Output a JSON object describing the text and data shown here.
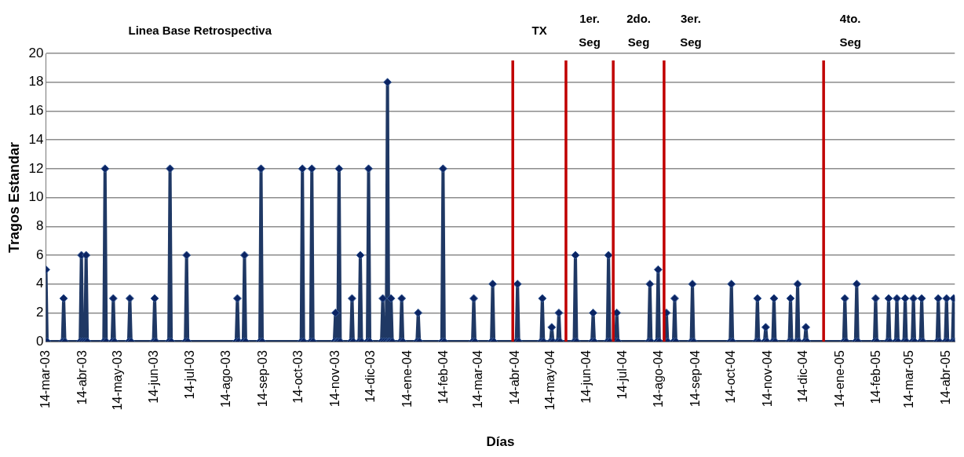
{
  "chart_data": {
    "type": "line",
    "xlabel": "Días",
    "ylabel": "Tragos Estandar",
    "color": "#1f3864",
    "marker": "diamond",
    "line_style": "solid",
    "grid": "y",
    "legend": false,
    "x": [
      "2003-03-14",
      "2003-03-15",
      "2003-03-28",
      "2003-03-29",
      "2003-03-30",
      "2003-04-12",
      "2003-04-13",
      "2003-04-14",
      "2003-04-16",
      "2003-04-17",
      "2003-04-18",
      "2003-05-02",
      "2003-05-03",
      "2003-05-04",
      "2003-05-09",
      "2003-05-10",
      "2003-05-11",
      "2003-05-23",
      "2003-05-24",
      "2003-05-25",
      "2003-06-13",
      "2003-06-14",
      "2003-06-15",
      "2003-06-26",
      "2003-06-27",
      "2003-06-28",
      "2003-07-10",
      "2003-07-11",
      "2003-07-12",
      "2003-08-22",
      "2003-08-23",
      "2003-08-24",
      "2003-08-28",
      "2003-08-29",
      "2003-08-30",
      "2003-09-11",
      "2003-09-12",
      "2003-09-13",
      "2003-10-16",
      "2003-10-17",
      "2003-10-18",
      "2003-10-24",
      "2003-10-25",
      "2003-10-26",
      "2003-11-13",
      "2003-11-14",
      "2003-11-15",
      "2003-11-16",
      "2003-11-17",
      "2003-11-18",
      "2003-11-27",
      "2003-11-28",
      "2003-11-29",
      "2003-12-04",
      "2003-12-05",
      "2003-12-06",
      "2003-12-11",
      "2003-12-12",
      "2003-12-13",
      "2003-12-23",
      "2003-12-24",
      "2003-12-25",
      "2003-12-27",
      "2003-12-28",
      "2003-12-29",
      "2003-12-30",
      "2003-12-31",
      "2004-01-01",
      "2004-01-08",
      "2004-01-09",
      "2004-01-10",
      "2004-01-22",
      "2004-01-23",
      "2004-01-24",
      "2004-02-12",
      "2004-02-13",
      "2004-02-14",
      "2004-03-09",
      "2004-03-10",
      "2004-03-11",
      "2004-03-25",
      "2004-03-26",
      "2004-03-27",
      "2004-04-15",
      "2004-04-16",
      "2004-04-17",
      "2004-05-06",
      "2004-05-07",
      "2004-05-08",
      "2004-05-14",
      "2004-05-15",
      "2004-05-16",
      "2004-05-20",
      "2004-05-21",
      "2004-05-22",
      "2004-06-03",
      "2004-06-04",
      "2004-06-05",
      "2004-06-18",
      "2004-06-19",
      "2004-06-20",
      "2004-07-01",
      "2004-07-02",
      "2004-07-03",
      "2004-07-08",
      "2004-07-09",
      "2004-07-10",
      "2004-08-05",
      "2004-08-06",
      "2004-08-07",
      "2004-08-12",
      "2004-08-13",
      "2004-08-14",
      "2004-08-19",
      "2004-08-20",
      "2004-08-21",
      "2004-08-26",
      "2004-08-27",
      "2004-08-28",
      "2004-09-10",
      "2004-09-11",
      "2004-09-12",
      "2004-10-13",
      "2004-10-14",
      "2004-10-15",
      "2004-11-04",
      "2004-11-05",
      "2004-11-06",
      "2004-11-11",
      "2004-11-12",
      "2004-11-13",
      "2004-11-18",
      "2004-11-19",
      "2004-11-20",
      "2004-12-02",
      "2004-12-03",
      "2004-12-04",
      "2004-12-08",
      "2004-12-09",
      "2004-12-10",
      "2004-12-15",
      "2004-12-16",
      "2004-12-17",
      "2005-01-17",
      "2005-01-18",
      "2005-01-19",
      "2005-01-27",
      "2005-01-28",
      "2005-01-29",
      "2005-02-12",
      "2005-02-13",
      "2005-02-14",
      "2005-02-23",
      "2005-02-24",
      "2005-02-25",
      "2005-03-02",
      "2005-03-03",
      "2005-03-04",
      "2005-03-09",
      "2005-03-10",
      "2005-03-11",
      "2005-03-16",
      "2005-03-17",
      "2005-03-18",
      "2005-03-23",
      "2005-03-24",
      "2005-03-25",
      "2005-04-06",
      "2005-04-07",
      "2005-04-08",
      "2005-04-13",
      "2005-04-14",
      "2005-04-15",
      "2005-04-19",
      "2005-04-20",
      "2005-04-21"
    ],
    "values": [
      5,
      0,
      0,
      3,
      0,
      0,
      6,
      0,
      0,
      6,
      0,
      0,
      12,
      0,
      0,
      3,
      0,
      0,
      3,
      0,
      0,
      3,
      0,
      0,
      12,
      0,
      0,
      6,
      0,
      0,
      3,
      0,
      0,
      6,
      0,
      0,
      12,
      0,
      0,
      12,
      0,
      0,
      12,
      0,
      0,
      2,
      0,
      0,
      12,
      0,
      0,
      3,
      0,
      0,
      6,
      0,
      0,
      12,
      0,
      0,
      3,
      0,
      0,
      18,
      0,
      0,
      3,
      0,
      0,
      3,
      0,
      0,
      2,
      0,
      0,
      12,
      0,
      0,
      3,
      0,
      0,
      4,
      0,
      0,
      4,
      0,
      0,
      3,
      0,
      0,
      1,
      0,
      0,
      2,
      0,
      0,
      6,
      0,
      0,
      2,
      0,
      0,
      6,
      0,
      0,
      2,
      0,
      0,
      4,
      0,
      0,
      5,
      0,
      0,
      2,
      0,
      0,
      3,
      0,
      0,
      4,
      0,
      0,
      4,
      0,
      0,
      3,
      0,
      0,
      1,
      0,
      0,
      3,
      0,
      0,
      3,
      0,
      0,
      4,
      0,
      0,
      1,
      0,
      0,
      3,
      0,
      0,
      4,
      0,
      0,
      3,
      0,
      0,
      3,
      0,
      0,
      3,
      0,
      0,
      3,
      0,
      0,
      3,
      0,
      0,
      3,
      0,
      0,
      3,
      0,
      0,
      3,
      0,
      0,
      3,
      0
    ],
    "xlim": [
      "2003-03-14",
      "2005-04-21"
    ],
    "xticks": [
      {
        "value": "2003-03-14",
        "label": "14-mar-03"
      },
      {
        "value": "2003-04-14",
        "label": "14-abr-03"
      },
      {
        "value": "2003-05-14",
        "label": "14-may-03"
      },
      {
        "value": "2003-06-14",
        "label": "14-jun-03"
      },
      {
        "value": "2003-07-14",
        "label": "14-jul-03"
      },
      {
        "value": "2003-08-14",
        "label": "14-ago-03"
      },
      {
        "value": "2003-09-14",
        "label": "14-sep-03"
      },
      {
        "value": "2003-10-14",
        "label": "14-oct-03"
      },
      {
        "value": "2003-11-14",
        "label": "14-nov-03"
      },
      {
        "value": "2003-12-14",
        "label": "14-dic-03"
      },
      {
        "value": "2004-01-14",
        "label": "14-ene-04"
      },
      {
        "value": "2004-02-14",
        "label": "14-feb-04"
      },
      {
        "value": "2004-03-14",
        "label": "14-mar-04"
      },
      {
        "value": "2004-04-14",
        "label": "14-abr-04"
      },
      {
        "value": "2004-05-14",
        "label": "14-may-04"
      },
      {
        "value": "2004-06-14",
        "label": "14-jun-04"
      },
      {
        "value": "2004-07-14",
        "label": "14-jul-04"
      },
      {
        "value": "2004-08-14",
        "label": "14-ago-04"
      },
      {
        "value": "2004-09-14",
        "label": "14-sep-04"
      },
      {
        "value": "2004-10-14",
        "label": "14-oct-04"
      },
      {
        "value": "2004-11-14",
        "label": "14-nov-04"
      },
      {
        "value": "2004-12-14",
        "label": "14-dic-04"
      },
      {
        "value": "2005-01-14",
        "label": "14-ene-05"
      },
      {
        "value": "2005-02-14",
        "label": "14-feb-05"
      },
      {
        "value": "2005-03-14",
        "label": "14-mar-05"
      },
      {
        "value": "2005-04-14",
        "label": "14-abr-05"
      }
    ],
    "ylim": [
      0,
      20
    ],
    "yticks": [
      0,
      2,
      4,
      6,
      8,
      10,
      12,
      14,
      16,
      18,
      20
    ],
    "ref_lines": [
      {
        "axis": "x",
        "value": "2004-04-12",
        "color": "#c00000",
        "label": "TX"
      },
      {
        "axis": "x",
        "value": "2004-05-27",
        "color": "#c00000",
        "label": "1er.\nSeg"
      },
      {
        "axis": "x",
        "value": "2004-07-06",
        "color": "#c00000",
        "label": "2do.\nSeg"
      },
      {
        "axis": "x",
        "value": "2004-08-18",
        "color": "#c00000",
        "label": "3er.\nSeg"
      },
      {
        "axis": "x",
        "value": "2004-12-31",
        "color": "#c00000",
        "label": "4to.\nSeg"
      }
    ],
    "annotations": [
      "Linea Base Retrospectiva"
    ]
  }
}
